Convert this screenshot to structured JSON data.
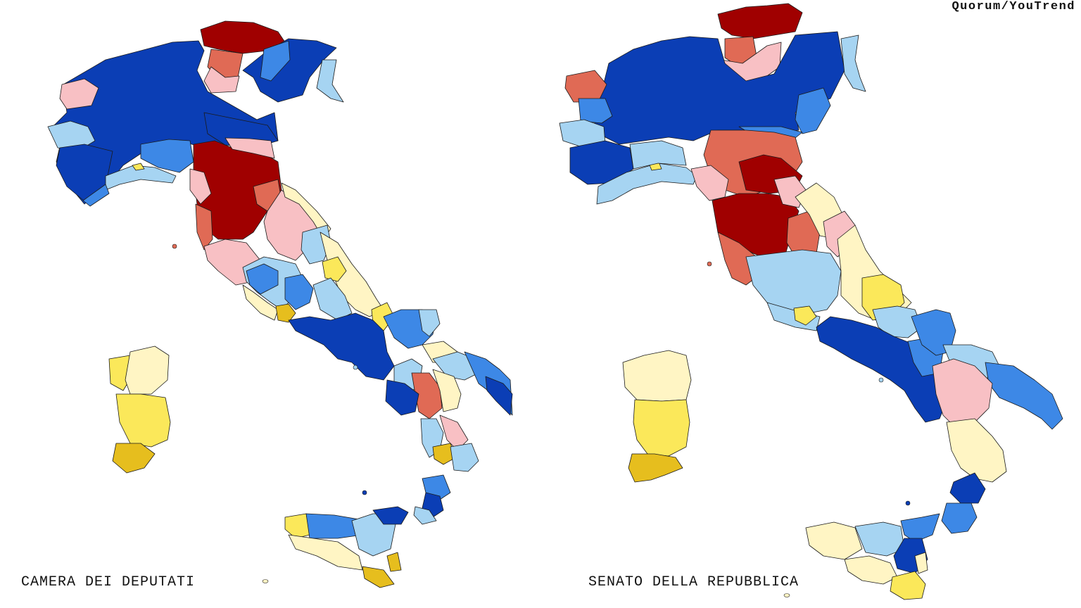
{
  "credit": "Quorum/YouTrend",
  "maps": [
    {
      "label": "CAMERA DEI DEPUTATI"
    },
    {
      "label": "SENATO DELLA REPUBBLICA"
    }
  ],
  "colors": {
    "dark_blue": "#0b3eb5",
    "mid_blue": "#3d88e6",
    "light_blue": "#a6d4f2",
    "dark_red": "#a00000",
    "mid_red": "#e06a55",
    "pink": "#f8c0c4",
    "pale_yellow": "#fff5c4",
    "yellow": "#fbe85a",
    "gold": "#e6be1e"
  }
}
